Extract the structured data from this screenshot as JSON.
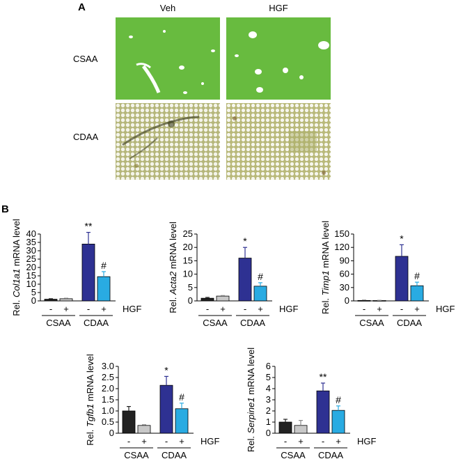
{
  "panel_a": {
    "letter": "A",
    "columns": [
      "Veh",
      "HGF"
    ],
    "rows": [
      "CSAA",
      "CDAA"
    ]
  },
  "panel_b": {
    "letter": "B"
  },
  "colors": {
    "csaa_veh": "#222222",
    "csaa_hgf": "#c8c8c8",
    "cdaa_veh": "#2e3192",
    "cdaa_hgf": "#29abe2",
    "csaa_tissue": "#6cbf3c",
    "cdaa_tissue": "#b9b97a"
  },
  "chart_data": [
    {
      "type": "bar",
      "gene": "Col1a1",
      "ylabel_pre": "Rel. ",
      "ylabel_gene": "Col1a1",
      "ylabel_post": " mRNA level",
      "ylim": [
        0,
        40
      ],
      "yticks": [
        "0",
        "5",
        "10",
        "15",
        "20",
        "25",
        "30",
        "35",
        "40"
      ],
      "hgf_signs": [
        "-",
        "+",
        "-",
        "+"
      ],
      "hgf_label": "HGF",
      "groups": [
        "CSAA",
        "CDAA"
      ],
      "values": [
        1,
        1.3,
        34,
        14.5
      ],
      "errors": [
        0.3,
        0.3,
        7,
        3
      ],
      "annotations": [
        "",
        "",
        "**",
        "#"
      ]
    },
    {
      "type": "bar",
      "gene": "Acta2",
      "ylabel_pre": "Rel. ",
      "ylabel_gene": "Acta2",
      "ylabel_post": " mRNA level",
      "ylim": [
        0,
        25
      ],
      "yticks": [
        "0",
        "5",
        "10",
        "15",
        "20",
        "25"
      ],
      "hgf_signs": [
        "-",
        "+",
        "-",
        "+"
      ],
      "hgf_label": "HGF",
      "groups": [
        "CSAA",
        "CDAA"
      ],
      "values": [
        1,
        1.8,
        16,
        5.5
      ],
      "errors": [
        0.3,
        0.2,
        4,
        1.3
      ],
      "annotations": [
        "",
        "",
        "*",
        "#"
      ]
    },
    {
      "type": "bar",
      "gene": "Timp1",
      "ylabel_pre": "Rel. ",
      "ylabel_gene": "Timp1",
      "ylabel_post": " mRNA level",
      "ylim": [
        0,
        150
      ],
      "yticks": [
        "0",
        "30",
        "60",
        "90",
        "120",
        "150"
      ],
      "hgf_signs": [
        "-",
        "+",
        "-",
        "+"
      ],
      "hgf_label": "HGF",
      "groups": [
        "CSAA",
        "CDAA"
      ],
      "values": [
        1,
        1,
        100,
        34
      ],
      "errors": [
        0.3,
        0.3,
        26,
        8
      ],
      "annotations": [
        "",
        "",
        "*",
        "#"
      ]
    },
    {
      "type": "bar",
      "gene": "Tgfb1",
      "ylabel_pre": "Rel. ",
      "ylabel_gene": "Tgfb1",
      "ylabel_post": " mRNA level",
      "ylim": [
        0,
        3.0
      ],
      "yticks": [
        "0",
        "0.5",
        "1.0",
        "1.5",
        "2.0",
        "2.5",
        "3.0"
      ],
      "hgf_signs": [
        "-",
        "+",
        "-",
        "+"
      ],
      "hgf_label": "HGF",
      "groups": [
        "CSAA",
        "CDAA"
      ],
      "values": [
        1.0,
        0.35,
        2.15,
        1.1
      ],
      "errors": [
        0.2,
        0.03,
        0.4,
        0.25
      ],
      "annotations": [
        "",
        "",
        "*",
        "#"
      ]
    },
    {
      "type": "bar",
      "gene": "Serpine1",
      "ylabel_pre": "Rel. ",
      "ylabel_gene": "Serpine1",
      "ylabel_post": " mRNA level",
      "ylim": [
        0,
        6
      ],
      "yticks": [
        "0",
        "1",
        "2",
        "3",
        "4",
        "5",
        "6"
      ],
      "hgf_signs": [
        "-",
        "+",
        "-",
        "+"
      ],
      "hgf_label": "HGF",
      "groups": [
        "CSAA",
        "CDAA"
      ],
      "values": [
        1.0,
        0.7,
        3.8,
        2.05
      ],
      "errors": [
        0.25,
        0.45,
        0.7,
        0.4
      ],
      "annotations": [
        "",
        "",
        "**",
        "#"
      ]
    }
  ]
}
